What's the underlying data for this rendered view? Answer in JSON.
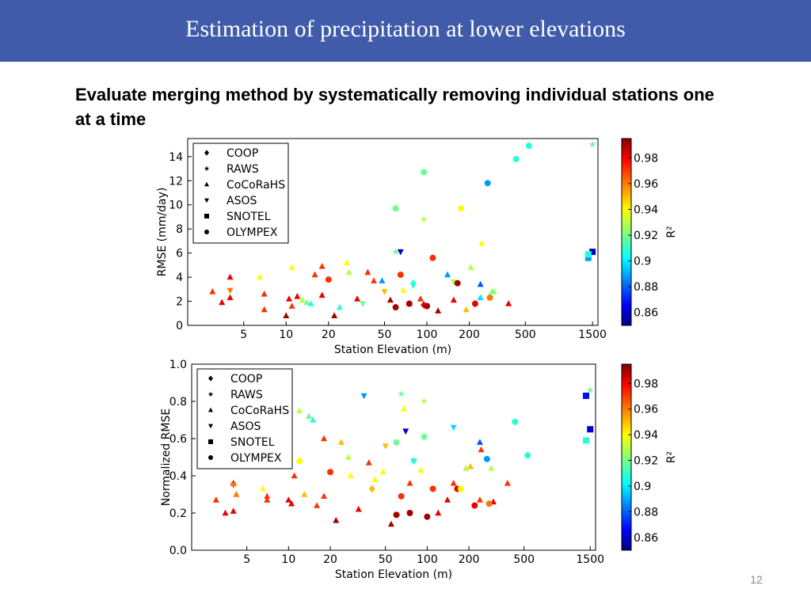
{
  "header": {
    "title": "Estimation of precipitation at lower elevations"
  },
  "subtitle": "Evaluate merging method by systematically removing individual stations one at a time",
  "page_number": "12",
  "chart_data": [
    {
      "type": "scatter",
      "xlabel": "Station Elevation (m)",
      "ylabel": "RMSE (mm/day)",
      "xscale": "log",
      "xlim": [
        2,
        1640
      ],
      "xticks": [
        5,
        10,
        20,
        50,
        100,
        200,
        500,
        1500
      ],
      "ylim": [
        0,
        15.5
      ],
      "yticks": [
        0,
        2,
        4,
        6,
        8,
        10,
        12,
        14
      ],
      "legend": "upper left",
      "colorbar": {
        "label": "R²",
        "colormap": "jet",
        "lim": [
          0.85,
          0.995
        ],
        "ticks": [
          0.86,
          0.88,
          0.9,
          0.92,
          0.94,
          0.96,
          0.98
        ]
      },
      "series": [
        {
          "name": "COOP",
          "marker": "diamond",
          "x": [
            80,
            95
          ],
          "values": [
            3.5,
            1.7
          ],
          "r2": [
            0.91,
            0.98
          ]
        },
        {
          "name": "RAWS",
          "marker": "star",
          "x": [
            1500,
            60,
            95
          ],
          "values": [
            15.0,
            6.1,
            8.8
          ],
          "r2": [
            0.92,
            0.92,
            0.93
          ]
        },
        {
          "name": "CoCoRaHS",
          "marker": "triangle-up",
          "x": [
            3,
            3.5,
            4,
            4,
            6.5,
            7,
            7,
            10,
            10.5,
            11,
            12,
            13,
            14,
            15,
            16,
            18,
            18,
            22,
            24,
            27,
            28,
            32,
            38,
            42,
            48,
            55,
            68,
            75,
            90,
            120,
            140,
            155,
            190,
            205,
            240,
            245,
            300,
            380,
            240,
            290,
            11
          ],
          "values": [
            2.8,
            1.9,
            4.0,
            2.3,
            4.0,
            1.3,
            2.6,
            0.8,
            2.2,
            1.6,
            2.4,
            2.1,
            1.9,
            1.8,
            4.2,
            2.5,
            4.9,
            0.8,
            1.5,
            5.2,
            4.4,
            2.2,
            4.4,
            3.7,
            3.7,
            2.1,
            2.9,
            1.8,
            2.2,
            1.2,
            4.2,
            2.1,
            1.3,
            4.8,
            3.4,
            6.8,
            2.8,
            1.8,
            2.3,
            2.8,
            4.8
          ],
          "r2": [
            0.97,
            0.98,
            0.98,
            0.98,
            0.94,
            0.97,
            0.97,
            0.99,
            0.98,
            0.97,
            0.98,
            0.93,
            0.92,
            0.91,
            0.97,
            0.98,
            0.97,
            0.99,
            0.91,
            0.94,
            0.93,
            0.98,
            0.97,
            0.97,
            0.89,
            0.99,
            0.94,
            0.97,
            0.97,
            0.99,
            0.89,
            0.98,
            0.95,
            0.93,
            0.88,
            0.94,
            0.93,
            0.98,
            0.9,
            0.92,
            0.94
          ]
        },
        {
          "name": "ASOS",
          "marker": "triangle-down",
          "x": [
            4,
            65,
            80,
            35,
            155,
            50
          ],
          "values": [
            2.9,
            6.1,
            3.3,
            1.8,
            3.6,
            2.8
          ],
          "r2": [
            0.96,
            0.86,
            0.91,
            0.92,
            0.93,
            0.95
          ]
        },
        {
          "name": "SNOTEL",
          "marker": "square",
          "x": [
            1400,
            1500,
            1400
          ],
          "values": [
            5.6,
            6.1,
            5.9
          ],
          "r2": [
            0.89,
            0.86,
            0.91
          ]
        },
        {
          "name": "OLYMPEX",
          "marker": "circle",
          "x": [
            100,
            60,
            75,
            220,
            280,
            165,
            110,
            65,
            20,
            270,
            175,
            60,
            530,
            430,
            95
          ],
          "values": [
            1.6,
            1.5,
            1.8,
            1.8,
            2.3,
            3.5,
            5.6,
            4.2,
            3.8,
            11.8,
            9.7,
            9.7,
            14.9,
            13.8,
            12.7
          ],
          "r2": [
            0.99,
            0.99,
            0.99,
            0.98,
            0.96,
            0.99,
            0.97,
            0.97,
            0.97,
            0.89,
            0.94,
            0.92,
            0.91,
            0.91,
            0.92
          ]
        }
      ]
    },
    {
      "type": "scatter",
      "xlabel": "Station Elevation (m)",
      "ylabel": "Normalized RMSE",
      "xscale": "log",
      "xlim": [
        2,
        1640
      ],
      "xticks": [
        5,
        10,
        20,
        50,
        100,
        200,
        500,
        1500
      ],
      "ylim": [
        0,
        1.0
      ],
      "yticks": [
        {
          "value": 0,
          "label": "0.0"
        },
        0.2,
        0.4,
        0.6,
        0.8,
        {
          "value": 1,
          "label": "1.0"
        }
      ],
      "legend": "upper left",
      "colorbar": {
        "label": "R²",
        "colormap": "jet",
        "lim": [
          0.85,
          0.995
        ],
        "ticks": [
          0.86,
          0.88,
          0.9,
          0.92,
          0.94,
          0.96,
          0.98
        ]
      },
      "series": [
        {
          "name": "COOP",
          "marker": "diamond",
          "x": [
            80,
            40
          ],
          "values": [
            0.48,
            0.33
          ],
          "r2": [
            0.91,
            0.95
          ]
        },
        {
          "name": "RAWS",
          "marker": "star",
          "x": [
            1500,
            65,
            95
          ],
          "values": [
            0.86,
            0.84,
            0.8
          ],
          "r2": [
            0.92,
            0.92,
            0.93
          ]
        },
        {
          "name": "CoCoRaHS",
          "marker": "triangle-up",
          "x": [
            3,
            3.5,
            4,
            4,
            6.5,
            7,
            7,
            10,
            10.5,
            11,
            12,
            13,
            14,
            15,
            16,
            18,
            18,
            22,
            24,
            27,
            28,
            32,
            38,
            42,
            48,
            55,
            68,
            75,
            90,
            120,
            140,
            155,
            190,
            205,
            240,
            245,
            300,
            380,
            240,
            290,
            4.2
          ],
          "values": [
            0.27,
            0.2,
            0.36,
            0.21,
            0.33,
            0.27,
            0.29,
            0.27,
            0.25,
            0.4,
            0.75,
            0.3,
            0.72,
            0.7,
            0.24,
            0.6,
            0.29,
            0.16,
            0.58,
            0.5,
            0.4,
            0.22,
            0.47,
            0.38,
            0.42,
            0.14,
            0.76,
            0.36,
            0.43,
            0.2,
            0.27,
            0.36,
            0.44,
            0.45,
            0.58,
            0.54,
            0.26,
            0.36,
            0.27,
            0.44,
            0.3
          ],
          "r2": [
            0.97,
            0.98,
            0.98,
            0.98,
            0.94,
            0.97,
            0.97,
            0.98,
            0.98,
            0.97,
            0.93,
            0.95,
            0.92,
            0.91,
            0.97,
            0.97,
            0.97,
            0.99,
            0.95,
            0.93,
            0.94,
            0.98,
            0.97,
            0.94,
            0.94,
            0.99,
            0.94,
            0.97,
            0.94,
            0.98,
            0.98,
            0.97,
            0.93,
            0.95,
            0.88,
            0.97,
            0.98,
            0.97,
            0.97,
            0.93,
            0.96
          ]
        },
        {
          "name": "ASOS",
          "marker": "triangle-down",
          "x": [
            4,
            70,
            80,
            35,
            155,
            50
          ],
          "values": [
            0.35,
            0.64,
            0.48,
            0.83,
            0.66,
            0.56
          ],
          "r2": [
            0.96,
            0.86,
            0.91,
            0.89,
            0.9,
            0.95
          ]
        },
        {
          "name": "SNOTEL",
          "marker": "square",
          "x": [
            1400,
            1500,
            1400
          ],
          "values": [
            0.83,
            0.65,
            0.59
          ],
          "r2": [
            0.87,
            0.86,
            0.91
          ]
        },
        {
          "name": "OLYMPEX",
          "marker": "circle",
          "x": [
            100,
            60,
            75,
            220,
            280,
            165,
            110,
            65,
            20,
            270,
            175,
            60,
            530,
            430,
            95,
            12
          ],
          "values": [
            0.18,
            0.19,
            0.2,
            0.24,
            0.25,
            0.33,
            0.33,
            0.29,
            0.42,
            0.49,
            0.33,
            0.58,
            0.51,
            0.69,
            0.61,
            0.48
          ],
          "r2": [
            0.99,
            0.99,
            0.99,
            0.98,
            0.96,
            0.98,
            0.97,
            0.97,
            0.97,
            0.89,
            0.94,
            0.92,
            0.91,
            0.91,
            0.92,
            0.94
          ]
        }
      ]
    }
  ]
}
